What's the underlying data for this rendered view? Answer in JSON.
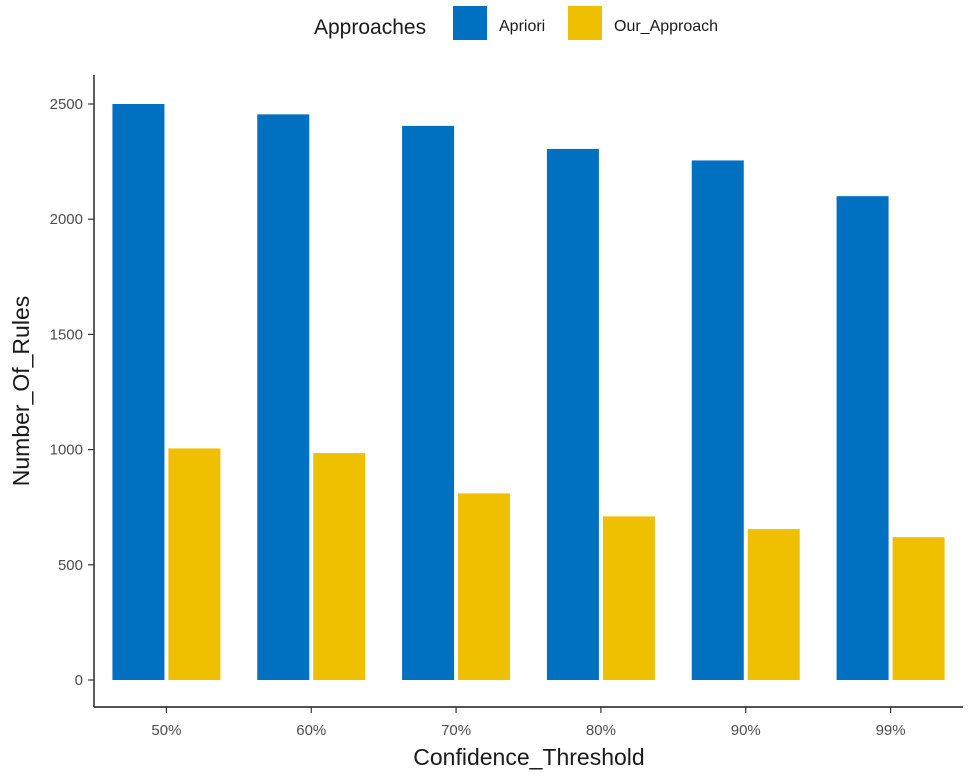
{
  "chart_data": {
    "type": "bar",
    "categories": [
      "50%",
      "60%",
      "70%",
      "80%",
      "90%",
      "99%"
    ],
    "series": [
      {
        "name": "Apriori",
        "color": "#0070C0",
        "values": [
          2500,
          2455,
          2405,
          2305,
          2255,
          2100
        ]
      },
      {
        "name": "Our_Approach",
        "color": "#EEC000",
        "values": [
          1005,
          985,
          810,
          710,
          655,
          620
        ]
      }
    ],
    "xlabel": "Confidence_Threshold",
    "ylabel": "Number_Of_Rules",
    "ylim": [
      -130,
      2630
    ],
    "yticks": [
      0,
      500,
      1000,
      1500,
      2000,
      2500
    ],
    "grid": false,
    "legend": {
      "title": "Approaches",
      "position": "top"
    }
  }
}
